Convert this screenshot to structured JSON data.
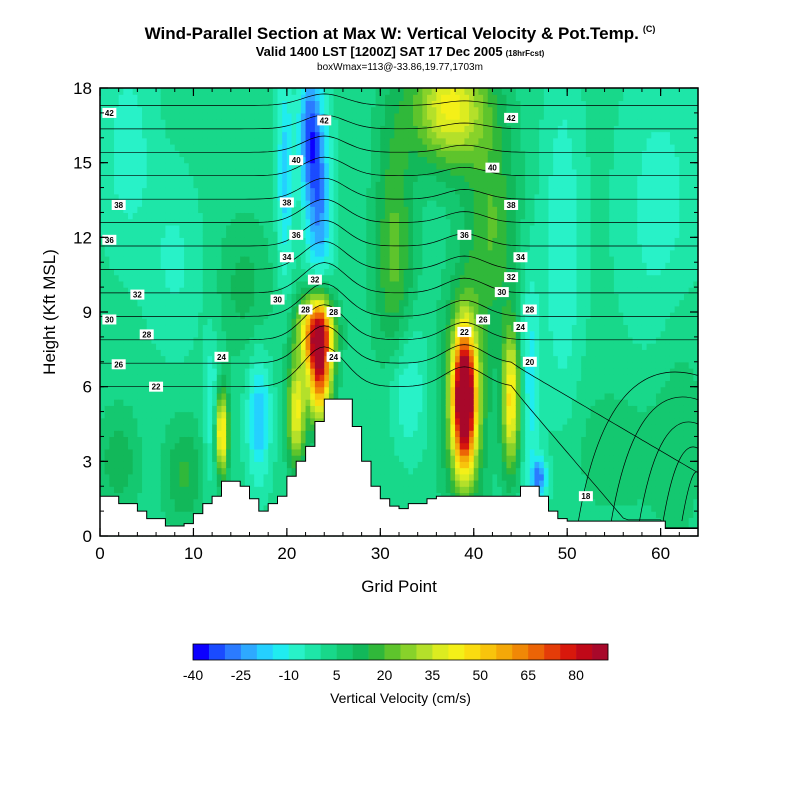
{
  "header": {
    "title": "Wind-Parallel Section at Max W: Vertical Velocity & Pot.Temp.",
    "title_mark": "(C)",
    "subtitle": "Valid 1400 LST [1200Z] SAT 17 Dec 2005",
    "subtitle_note": "(18hrFcst)",
    "info": "boxWmax=113@-33.86,19.77,1703m"
  },
  "chart_data": {
    "type": "heatmap",
    "xlabel": "Grid Point",
    "ylabel": "Height (Kft MSL)",
    "xlim": [
      0,
      64
    ],
    "ylim": [
      0,
      18
    ],
    "xticks": [
      0,
      10,
      20,
      30,
      40,
      50,
      60
    ],
    "yticks": [
      0,
      3,
      6,
      9,
      12,
      15,
      18
    ],
    "colorbar": {
      "label": "Vertical Velocity (cm/s)",
      "tick_values": [
        -40,
        -25,
        -10,
        5,
        20,
        35,
        50,
        65,
        80
      ],
      "bins": [
        -40,
        -35,
        -30,
        -25,
        -20,
        -15,
        -10,
        -5,
        0,
        5,
        10,
        15,
        20,
        25,
        30,
        35,
        40,
        45,
        50,
        55,
        60,
        65,
        70,
        75,
        80,
        85,
        90
      ],
      "colors": [
        "#0c00ff",
        "#1a4bff",
        "#2b7bff",
        "#2ea9ff",
        "#25d0ff",
        "#20ecf0",
        "#28f2c8",
        "#1ee6a8",
        "#18d88a",
        "#14c870",
        "#12b85a",
        "#30b83a",
        "#5ec42c",
        "#88d22a",
        "#b4e02a",
        "#dcec20",
        "#f4f018",
        "#fadc10",
        "#f8c40c",
        "#f4a808",
        "#f08806",
        "#ec6406",
        "#e43c08",
        "#d8180c",
        "#c00818",
        "#a8082a"
      ]
    },
    "theta_contours": [
      {
        "value": 18,
        "label": "18"
      },
      {
        "value": 20,
        "label": "20"
      },
      {
        "value": 22,
        "label": "22"
      },
      {
        "value": 24,
        "label": "24"
      },
      {
        "value": 26,
        "label": "26"
      },
      {
        "value": 28,
        "label": "28"
      },
      {
        "value": 30,
        "label": "30"
      },
      {
        "value": 32,
        "label": "32"
      },
      {
        "value": 34,
        "label": "34"
      },
      {
        "value": 36,
        "label": "36"
      },
      {
        "value": 38,
        "label": "38"
      },
      {
        "value": 40,
        "label": "40"
      },
      {
        "value": 42,
        "label": "42"
      }
    ],
    "contour_labels": [
      {
        "text": "42",
        "x": 1,
        "y": 17.0
      },
      {
        "text": "42",
        "x": 24,
        "y": 16.7
      },
      {
        "text": "42",
        "x": 44,
        "y": 16.8
      },
      {
        "text": "40",
        "x": 21,
        "y": 15.1
      },
      {
        "text": "40",
        "x": 42,
        "y": 14.8
      },
      {
        "text": "38",
        "x": 2,
        "y": 13.3
      },
      {
        "text": "38",
        "x": 20,
        "y": 13.4
      },
      {
        "text": "38",
        "x": 44,
        "y": 13.3
      },
      {
        "text": "36",
        "x": 1,
        "y": 11.9
      },
      {
        "text": "36",
        "x": 21,
        "y": 12.1
      },
      {
        "text": "36",
        "x": 39,
        "y": 12.1
      },
      {
        "text": "34",
        "x": 20,
        "y": 11.2
      },
      {
        "text": "34",
        "x": 45,
        "y": 11.2
      },
      {
        "text": "32",
        "x": 23,
        "y": 10.3
      },
      {
        "text": "32",
        "x": 44,
        "y": 10.4
      },
      {
        "text": "32",
        "x": 4,
        "y": 9.7
      },
      {
        "text": "30",
        "x": 19,
        "y": 9.5
      },
      {
        "text": "30",
        "x": 43,
        "y": 9.8
      },
      {
        "text": "30",
        "x": 1,
        "y": 8.7
      },
      {
        "text": "28",
        "x": 22,
        "y": 9.1
      },
      {
        "text": "28",
        "x": 25,
        "y": 9.0
      },
      {
        "text": "28",
        "x": 46,
        "y": 9.1
      },
      {
        "text": "28",
        "x": 5,
        "y": 8.1
      },
      {
        "text": "26",
        "x": 41,
        "y": 8.7
      },
      {
        "text": "26",
        "x": 2,
        "y": 6.9
      },
      {
        "text": "24",
        "x": 13,
        "y": 7.2
      },
      {
        "text": "24",
        "x": 25,
        "y": 7.2
      },
      {
        "text": "24",
        "x": 45,
        "y": 8.4
      },
      {
        "text": "22",
        "x": 6,
        "y": 6.0
      },
      {
        "text": "22",
        "x": 39,
        "y": 8.2
      },
      {
        "text": "20",
        "x": 46,
        "y": 7.0
      },
      {
        "text": "18",
        "x": 52,
        "y": 1.6
      }
    ],
    "terrain": [
      {
        "x": 0,
        "y": 1.6
      },
      {
        "x": 1,
        "y": 1.6
      },
      {
        "x": 2,
        "y": 1.3
      },
      {
        "x": 4,
        "y": 1.0
      },
      {
        "x": 5,
        "y": 0.7
      },
      {
        "x": 7,
        "y": 0.4
      },
      {
        "x": 9,
        "y": 0.5
      },
      {
        "x": 10,
        "y": 0.9
      },
      {
        "x": 11,
        "y": 1.3
      },
      {
        "x": 12,
        "y": 1.6
      },
      {
        "x": 13,
        "y": 2.2
      },
      {
        "x": 15,
        "y": 2.0
      },
      {
        "x": 16,
        "y": 1.5
      },
      {
        "x": 17,
        "y": 1.0
      },
      {
        "x": 18,
        "y": 1.3
      },
      {
        "x": 19,
        "y": 1.6
      },
      {
        "x": 20,
        "y": 2.4
      },
      {
        "x": 21,
        "y": 3.0
      },
      {
        "x": 22,
        "y": 3.6
      },
      {
        "x": 23,
        "y": 4.6
      },
      {
        "x": 24,
        "y": 5.5
      },
      {
        "x": 26,
        "y": 5.5
      },
      {
        "x": 27,
        "y": 4.4
      },
      {
        "x": 28,
        "y": 3.0
      },
      {
        "x": 29,
        "y": 2.0
      },
      {
        "x": 30,
        "y": 1.5
      },
      {
        "x": 31,
        "y": 1.2
      },
      {
        "x": 32,
        "y": 1.1
      },
      {
        "x": 33,
        "y": 1.3
      },
      {
        "x": 35,
        "y": 1.5
      },
      {
        "x": 36,
        "y": 1.6
      },
      {
        "x": 38,
        "y": 1.6
      },
      {
        "x": 40,
        "y": 1.6
      },
      {
        "x": 42,
        "y": 1.6
      },
      {
        "x": 44,
        "y": 1.6
      },
      {
        "x": 45,
        "y": 2.0
      },
      {
        "x": 46,
        "y": 2.0
      },
      {
        "x": 47,
        "y": 1.6
      },
      {
        "x": 48,
        "y": 1.0
      },
      {
        "x": 49,
        "y": 0.7
      },
      {
        "x": 50,
        "y": 0.6
      },
      {
        "x": 60,
        "y": 0.6
      },
      {
        "x": 60.5,
        "y": 0.3
      },
      {
        "x": 64,
        "y": 0.3
      }
    ],
    "w_features": [
      {
        "x": 23.5,
        "y": 7.0,
        "sx": 0.9,
        "sy": 1.6,
        "w": 75
      },
      {
        "x": 23.0,
        "y": 8.3,
        "sx": 1.4,
        "sy": 1.0,
        "w": 45
      },
      {
        "x": 39.0,
        "y": 5.5,
        "sx": 0.8,
        "sy": 1.8,
        "w": 90
      },
      {
        "x": 39.0,
        "y": 5.5,
        "sx": 1.6,
        "sy": 3.0,
        "w": 30
      },
      {
        "x": 44.0,
        "y": 5.5,
        "sx": 0.7,
        "sy": 2.0,
        "w": 45
      },
      {
        "x": 13.0,
        "y": 4.2,
        "sx": 0.5,
        "sy": 1.2,
        "w": 50
      },
      {
        "x": 21.0,
        "y": 5.0,
        "sx": 0.7,
        "sy": 1.5,
        "w": 40
      },
      {
        "x": 37.5,
        "y": 17.3,
        "sx": 2.8,
        "sy": 1.7,
        "w": 40
      },
      {
        "x": 42.0,
        "y": 12.5,
        "sx": 2.0,
        "sy": 3.0,
        "w": 18
      },
      {
        "x": 31.5,
        "y": 11.0,
        "sx": 1.5,
        "sy": 4.5,
        "w": 20
      },
      {
        "x": 22.5,
        "y": 16.3,
        "sx": 0.9,
        "sy": 2.0,
        "w": -30
      },
      {
        "x": 23.5,
        "y": 13.0,
        "sx": 1.0,
        "sy": 2.5,
        "w": -25
      },
      {
        "x": 19.8,
        "y": 14.5,
        "sx": 0.6,
        "sy": 3.0,
        "w": -20
      },
      {
        "x": 17.0,
        "y": 4.8,
        "sx": 0.9,
        "sy": 1.8,
        "w": -22
      },
      {
        "x": 12.0,
        "y": 5.0,
        "sx": 0.6,
        "sy": 2.0,
        "w": -15
      },
      {
        "x": 32.5,
        "y": 6.0,
        "sx": 1.6,
        "sy": 2.0,
        "w": -18
      },
      {
        "x": 46.0,
        "y": 6.2,
        "sx": 0.8,
        "sy": 3.5,
        "w": -15
      },
      {
        "x": 47.0,
        "y": 2.3,
        "sx": 0.6,
        "sy": 0.6,
        "w": -28
      },
      {
        "x": 49.5,
        "y": 11.5,
        "sx": 1.5,
        "sy": 5.0,
        "w": -12
      },
      {
        "x": 3.0,
        "y": 15.5,
        "sx": 2.0,
        "sy": 3.0,
        "w": -10
      },
      {
        "x": 8.0,
        "y": 11.0,
        "sx": 2.0,
        "sy": 2.5,
        "w": -8
      },
      {
        "x": 60.0,
        "y": 13.0,
        "sx": 3.0,
        "sy": 4.0,
        "w": -10
      },
      {
        "x": 62.0,
        "y": 5.0,
        "sx": 2.0,
        "sy": 4.0,
        "w": 6
      },
      {
        "x": 55.0,
        "y": 3.5,
        "sx": 4.0,
        "sy": 2.0,
        "w": 6
      },
      {
        "x": 9.0,
        "y": 2.5,
        "sx": 1.5,
        "sy": 1.5,
        "w": 14
      },
      {
        "x": 2.0,
        "y": 3.0,
        "sx": 1.5,
        "sy": 1.5,
        "w": 12
      },
      {
        "x": 15.5,
        "y": 10.0,
        "sx": 2.0,
        "sy": 2.0,
        "w": 10
      }
    ],
    "w_background": 2
  }
}
